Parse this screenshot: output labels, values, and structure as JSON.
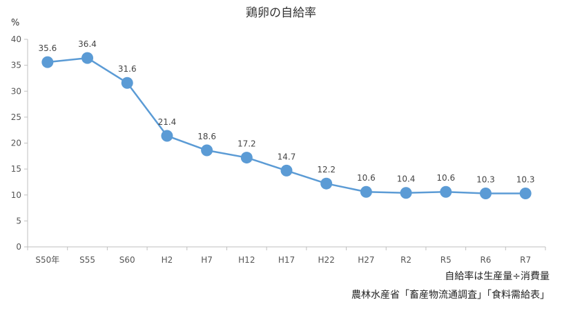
{
  "chart_data": {
    "type": "line",
    "title": "鶏卵の自給率",
    "ylabel": "%",
    "categories": [
      "S50年",
      "S55",
      "S60",
      "H2",
      "H7",
      "H12",
      "H17",
      "H22",
      "H27",
      "R2",
      "R5",
      "R6",
      "R7"
    ],
    "series": [
      {
        "values": [
          35.6,
          36.4,
          31.6,
          21.4,
          18.6,
          17.2,
          14.7,
          12.2,
          10.6,
          10.4,
          10.6,
          10.3,
          10.3
        ]
      }
    ],
    "ylim": [
      0,
      40
    ],
    "yticks": [
      0,
      5,
      10,
      15,
      20,
      25,
      30,
      35,
      40
    ],
    "grid": false,
    "color": "#5b9bd5"
  },
  "notes": {
    "formula": "自給率は生産量÷消費量",
    "source": "農林水産省「畜産物流通調査」「食料需給表」"
  }
}
